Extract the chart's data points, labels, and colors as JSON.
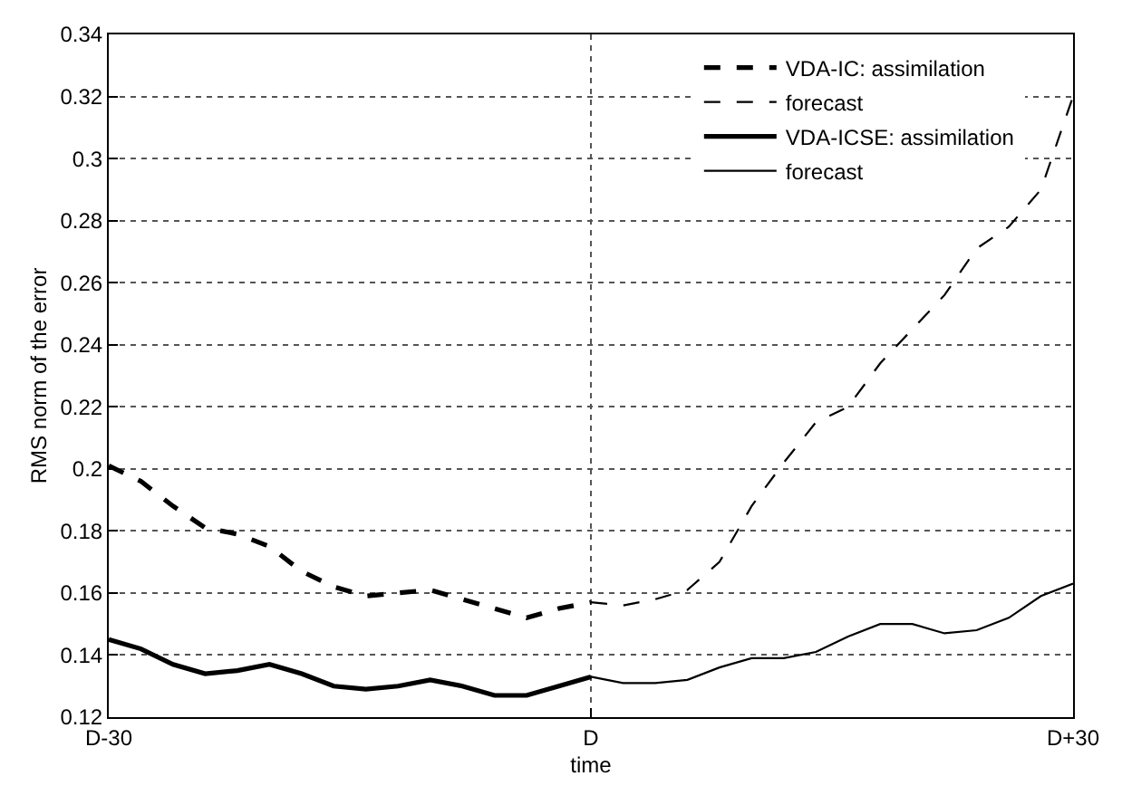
{
  "chart_data": {
    "type": "line",
    "xlabel": "time",
    "ylabel": "RMS norm of the error",
    "categories": [
      "D-30",
      null,
      null,
      null,
      null,
      null,
      null,
      null,
      null,
      null,
      null,
      null,
      null,
      null,
      null,
      "D",
      null,
      null,
      null,
      null,
      null,
      null,
      null,
      null,
      null,
      null,
      null,
      null,
      null,
      null,
      "D+30"
    ],
    "ylim": [
      0.12,
      0.34
    ],
    "yticks": [
      0.12,
      0.14,
      0.16,
      0.18,
      0.2,
      0.22,
      0.24,
      0.26,
      0.28,
      0.3,
      0.32,
      0.34
    ],
    "grid": true,
    "legend": "top right",
    "marker": "none",
    "series": [
      {
        "name": "VDA-IC: assimilation",
        "color": "#000000",
        "line_style": "dashed",
        "values": [
          0.201,
          0.196,
          0.188,
          0.181,
          0.179,
          0.175,
          0.167,
          0.162,
          0.159,
          0.16,
          0.161,
          0.158,
          0.155,
          0.152,
          0.155,
          0.157,
          null,
          null,
          null,
          null,
          null,
          null,
          null,
          null,
          null,
          null,
          null,
          null,
          null,
          null,
          null
        ]
      },
      {
        "name": "forecast",
        "color": "#000000",
        "line_style": "dashed",
        "values": [
          null,
          null,
          null,
          null,
          null,
          null,
          null,
          null,
          null,
          null,
          null,
          null,
          null,
          null,
          null,
          0.157,
          0.156,
          0.158,
          0.161,
          0.17,
          0.188,
          0.202,
          0.215,
          0.22,
          0.234,
          0.245,
          0.256,
          0.271,
          0.278,
          0.29,
          0.32
        ]
      },
      {
        "name": "VDA-ICSE: assimilation",
        "color": "#000000",
        "line_style": "solid",
        "values": [
          0.145,
          0.142,
          0.137,
          0.134,
          0.135,
          0.137,
          0.134,
          0.13,
          0.129,
          0.13,
          0.132,
          0.13,
          0.127,
          0.127,
          0.13,
          0.133,
          null,
          null,
          null,
          null,
          null,
          null,
          null,
          null,
          null,
          null,
          null,
          null,
          null,
          null,
          null
        ]
      },
      {
        "name": "forecast",
        "color": "#000000",
        "line_style": "solid",
        "values": [
          null,
          null,
          null,
          null,
          null,
          null,
          null,
          null,
          null,
          null,
          null,
          null,
          null,
          null,
          null,
          0.133,
          0.131,
          0.131,
          0.132,
          0.136,
          0.139,
          0.139,
          0.141,
          0.146,
          0.15,
          0.15,
          0.147,
          0.148,
          0.152,
          0.159,
          0.163
        ]
      }
    ]
  }
}
